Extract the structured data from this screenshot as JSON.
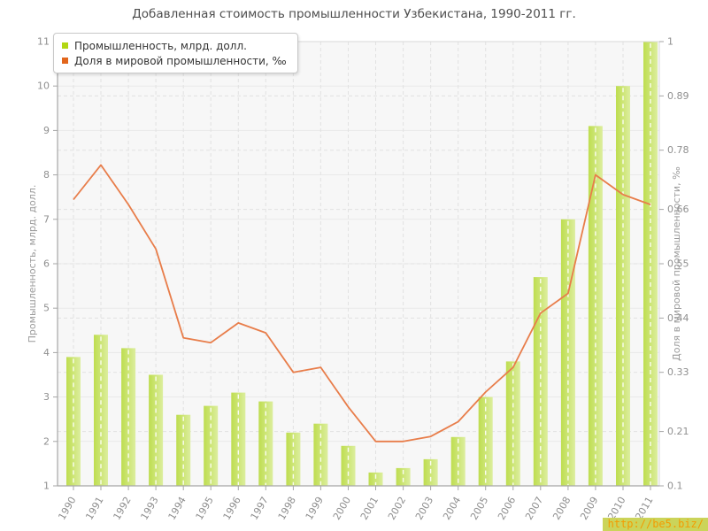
{
  "watermark": "http://be5.biz/",
  "colors": {
    "bar_gradient_start": "#bedd4f",
    "bar_gradient_end": "#dcee9e",
    "line": "#e87d4a",
    "legend_bar_swatch": "#b2d714",
    "legend_line_swatch": "#e2661c",
    "watermark_bg": "#cbd45a",
    "watermark_text": "#f49b00"
  },
  "chart_data": {
    "type": "bar",
    "title": "Добавленная стоимость промышленности Узбекистана, 1990-2011 гг.",
    "categories": [
      "1990",
      "1991",
      "1992",
      "1993",
      "1994",
      "1995",
      "1996",
      "1997",
      "1998",
      "1999",
      "2000",
      "2001",
      "2002",
      "2003",
      "2004",
      "2005",
      "2006",
      "2007",
      "2008",
      "2009",
      "2010",
      "2011"
    ],
    "series": [
      {
        "name": "Промышленность, млрд. долл.",
        "type": "bar",
        "axis": "left",
        "values": [
          3.9,
          4.4,
          4.1,
          3.5,
          2.6,
          2.8,
          3.1,
          2.9,
          2.2,
          2.4,
          1.9,
          1.3,
          1.4,
          1.6,
          2.1,
          3.0,
          3.8,
          5.7,
          7.0,
          9.1,
          10.0,
          11.0
        ]
      },
      {
        "name": "Доля в мировой промышленности, ‰",
        "type": "line",
        "axis": "right",
        "values": [
          0.68,
          0.75,
          0.67,
          0.58,
          0.4,
          0.39,
          0.43,
          0.41,
          0.33,
          0.34,
          0.26,
          0.19,
          0.19,
          0.2,
          0.23,
          0.29,
          0.34,
          0.45,
          0.49,
          0.73,
          0.69,
          0.67
        ]
      }
    ],
    "ylabel_left": "Промышленность, млрд. долл.",
    "ylabel_right": "Доля в мировой промышленности, ‰",
    "ylim_left": [
      1,
      11
    ],
    "ylim_right": [
      0.1,
      1
    ],
    "left_ticks": [
      "11",
      "10",
      "9",
      "8",
      "7",
      "6",
      "5",
      "4",
      "3",
      "2",
      "1"
    ],
    "right_ticks": [
      "1",
      "0.89",
      "0.78",
      "0.66",
      "0.55",
      "0.44",
      "0.33",
      "0.21",
      "0.1"
    ],
    "grid": true,
    "legend_position": "top-left"
  }
}
